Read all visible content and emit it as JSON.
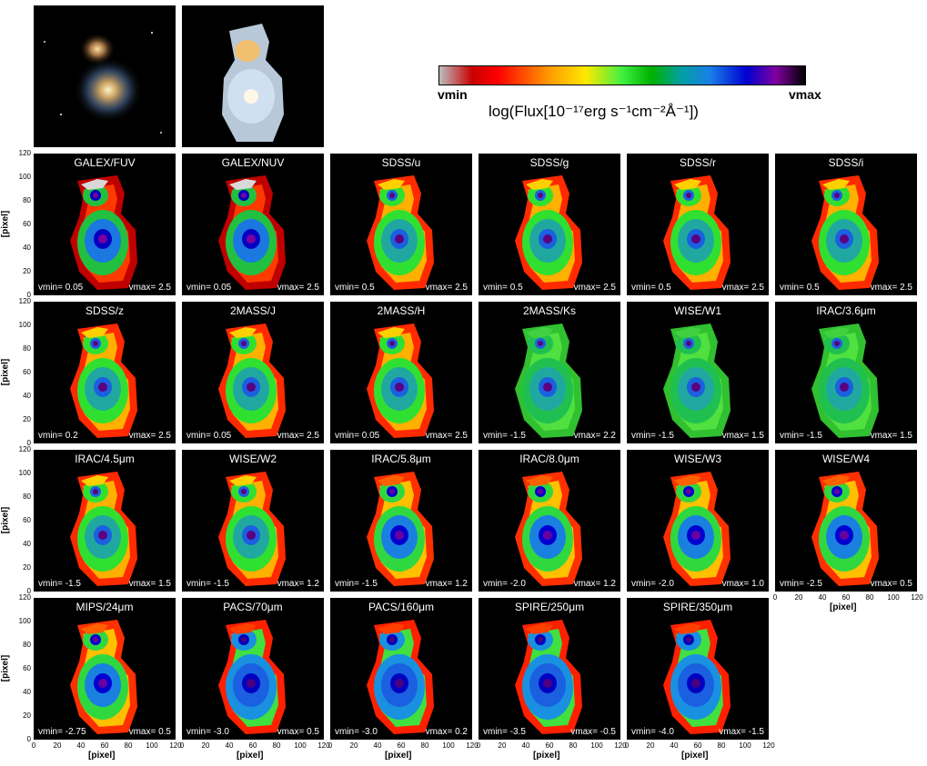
{
  "colorbar": {
    "min_label": "vmin",
    "max_label": "vmax",
    "quantity_label": "log(Flux[10⁻¹⁷erg s⁻¹cm⁻²Å⁻¹])"
  },
  "axes": {
    "label": "[pixel]",
    "ticks": [
      "0",
      "20",
      "40",
      "60",
      "80",
      "100",
      "120"
    ]
  },
  "panels": [
    {
      "title": "GALEX/FUV",
      "vmin": "vmin= 0.05",
      "vmax": "vmax= 2.5",
      "style": "fuv"
    },
    {
      "title": "GALEX/NUV",
      "vmin": "vmin= 0.05",
      "vmax": "vmax= 2.5",
      "style": "fuv"
    },
    {
      "title": "SDSS/u",
      "vmin": "vmin= 0.5",
      "vmax": "vmax= 2.5",
      "style": "opt"
    },
    {
      "title": "SDSS/g",
      "vmin": "vmin= 0.5",
      "vmax": "vmax= 2.5",
      "style": "opt"
    },
    {
      "title": "SDSS/r",
      "vmin": "vmin= 0.5",
      "vmax": "vmax= 2.5",
      "style": "opt"
    },
    {
      "title": "SDSS/i",
      "vmin": "vmin= 0.5",
      "vmax": "vmax= 2.5",
      "style": "opt"
    },
    {
      "title": "SDSS/z",
      "vmin": "vmin= 0.2",
      "vmax": "vmax= 2.5",
      "style": "opt"
    },
    {
      "title": "2MASS/J",
      "vmin": "vmin= 0.05",
      "vmax": "vmax= 2.5",
      "style": "opt"
    },
    {
      "title": "2MASS/H",
      "vmin": "vmin= 0.05",
      "vmax": "vmax= 2.5",
      "style": "opt"
    },
    {
      "title": "2MASS/Ks",
      "vmin": "vmin= -1.5",
      "vmax": "vmax= 2.2",
      "style": "nir"
    },
    {
      "title": "WISE/W1",
      "vmin": "vmin= -1.5",
      "vmax": "vmax= 1.5",
      "style": "nir"
    },
    {
      "title": "IRAC/3.6μm",
      "vmin": "vmin= -1.5",
      "vmax": "vmax= 1.5",
      "style": "nir"
    },
    {
      "title": "IRAC/4.5μm",
      "vmin": "vmin= -1.5",
      "vmax": "vmax= 1.5",
      "style": "opt"
    },
    {
      "title": "WISE/W2",
      "vmin": "vmin= -1.5",
      "vmax": "vmax= 1.2",
      "style": "opt"
    },
    {
      "title": "IRAC/5.8μm",
      "vmin": "vmin= -1.5",
      "vmax": "vmax= 1.2",
      "style": "mir"
    },
    {
      "title": "IRAC/8.0μm",
      "vmin": "vmin= -2.0",
      "vmax": "vmax= 1.2",
      "style": "mir"
    },
    {
      "title": "WISE/W3",
      "vmin": "vmin= -2.0",
      "vmax": "vmax= 1.0",
      "style": "mir"
    },
    {
      "title": "WISE/W4",
      "vmin": "vmin= -2.5",
      "vmax": "vmax= 0.5",
      "style": "mir"
    },
    {
      "title": "MIPS/24μm",
      "vmin": "vmin= -2.75",
      "vmax": "vmax= 0.5",
      "style": "mir"
    },
    {
      "title": "PACS/70μm",
      "vmin": "vmin= -3.0",
      "vmax": "vmax= 0.5",
      "style": "fir"
    },
    {
      "title": "PACS/160μm",
      "vmin": "vmin= -3.0",
      "vmax": "vmax= 0.2",
      "style": "fir"
    },
    {
      "title": "SPIRE/250μm",
      "vmin": "vmin= -3.5",
      "vmax": "vmax= -0.5",
      "style": "fir"
    },
    {
      "title": "SPIRE/350μm",
      "vmin": "vmin= -4.0",
      "vmax": "vmax= -1.5",
      "style": "fir"
    }
  ]
}
